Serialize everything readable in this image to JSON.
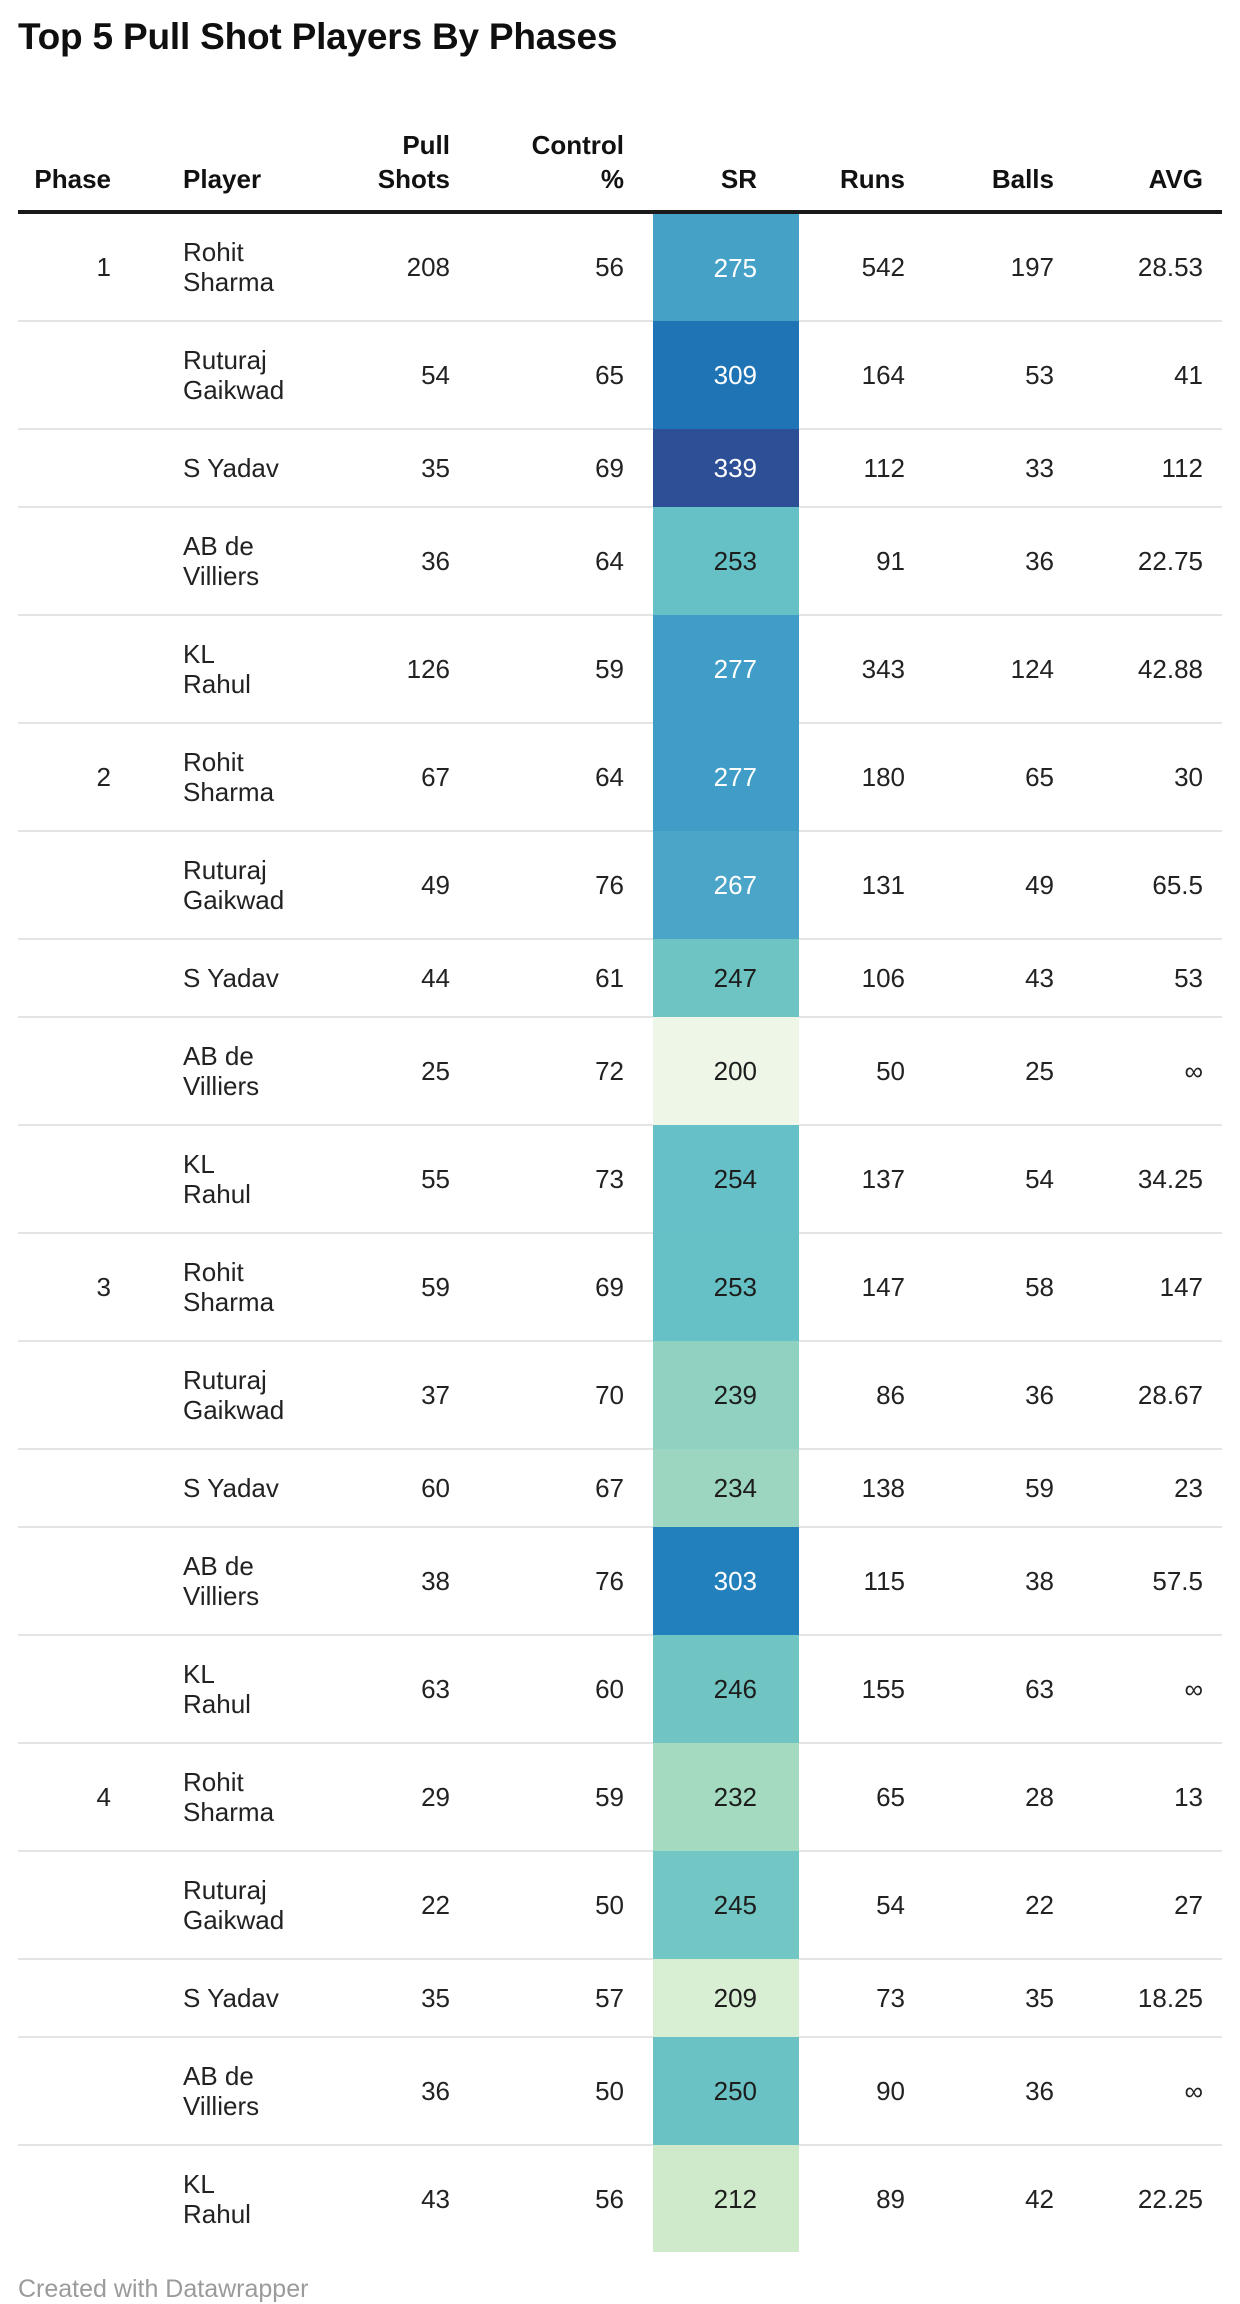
{
  "title": "Top 5 Pull Shot Players By Phases",
  "footer": {
    "credit": "Created with Datawrapper"
  },
  "colors": {
    "header_rule": "#1a1a1a",
    "row_rule": "#e4e4e4",
    "title_text": "#0f0f0f",
    "body_text": "#222222",
    "footer_text": "#9b9b9b",
    "sr_text_light": "#ffffff",
    "sr_text_dark": "#1d1d1d"
  },
  "table": {
    "columns": [
      {
        "key": "phase",
        "label": "Phase"
      },
      {
        "key": "player",
        "label": "Player"
      },
      {
        "key": "pull_shots",
        "label": "Pull\nShots"
      },
      {
        "key": "control_pct",
        "label": "Control\n%"
      },
      {
        "key": "sr",
        "label": "SR"
      },
      {
        "key": "runs",
        "label": "Runs"
      },
      {
        "key": "balls",
        "label": "Balls"
      },
      {
        "key": "avg",
        "label": "AVG"
      }
    ],
    "rows": [
      {
        "phase": "1",
        "player": "Rohit\nSharma",
        "pull_shots": "208",
        "control_pct": "56",
        "sr": "275",
        "runs": "542",
        "balls": "197",
        "avg": "28.53",
        "sr_color": "#46a1c7",
        "sr_text": "light"
      },
      {
        "phase": "",
        "player": "Ruturaj\nGaikwad",
        "pull_shots": "54",
        "control_pct": "65",
        "sr": "309",
        "runs": "164",
        "balls": "53",
        "avg": "41",
        "sr_color": "#1e74b5",
        "sr_text": "light"
      },
      {
        "phase": "",
        "player": "S Yadav",
        "pull_shots": "35",
        "control_pct": "69",
        "sr": "339",
        "runs": "112",
        "balls": "33",
        "avg": "112",
        "sr_color": "#2d4f96",
        "sr_text": "light"
      },
      {
        "phase": "",
        "player": "AB de\nVilliers",
        "pull_shots": "36",
        "control_pct": "64",
        "sr": "253",
        "runs": "91",
        "balls": "36",
        "avg": "22.75",
        "sr_color": "#66c1c6",
        "sr_text": "dark"
      },
      {
        "phase": "",
        "player": "KL\nRahul",
        "pull_shots": "126",
        "control_pct": "59",
        "sr": "277",
        "runs": "343",
        "balls": "124",
        "avg": "42.88",
        "sr_color": "#3f9dc7",
        "sr_text": "light"
      },
      {
        "phase": "2",
        "player": "Rohit\nSharma",
        "pull_shots": "67",
        "control_pct": "64",
        "sr": "277",
        "runs": "180",
        "balls": "65",
        "avg": "30",
        "sr_color": "#3f9dc7",
        "sr_text": "light"
      },
      {
        "phase": "",
        "player": "Ruturaj\nGaikwad",
        "pull_shots": "49",
        "control_pct": "76",
        "sr": "267",
        "runs": "131",
        "balls": "49",
        "avg": "65.5",
        "sr_color": "#4aa5c8",
        "sr_text": "light"
      },
      {
        "phase": "",
        "player": "S Yadav",
        "pull_shots": "44",
        "control_pct": "61",
        "sr": "247",
        "runs": "106",
        "balls": "43",
        "avg": "53",
        "sr_color": "#6ec4c3",
        "sr_text": "dark"
      },
      {
        "phase": "",
        "player": "AB de\nVilliers",
        "pull_shots": "25",
        "control_pct": "72",
        "sr": "200",
        "runs": "50",
        "balls": "25",
        "avg": "∞",
        "sr_color": "#eef6e8",
        "sr_text": "dark"
      },
      {
        "phase": "",
        "player": "KL\nRahul",
        "pull_shots": "55",
        "control_pct": "73",
        "sr": "254",
        "runs": "137",
        "balls": "54",
        "avg": "34.25",
        "sr_color": "#65c0c7",
        "sr_text": "dark"
      },
      {
        "phase": "3",
        "player": "Rohit\nSharma",
        "pull_shots": "59",
        "control_pct": "69",
        "sr": "253",
        "runs": "147",
        "balls": "58",
        "avg": "147",
        "sr_color": "#66c1c6",
        "sr_text": "dark"
      },
      {
        "phase": "",
        "player": "Ruturaj\nGaikwad",
        "pull_shots": "37",
        "control_pct": "70",
        "sr": "239",
        "runs": "86",
        "balls": "36",
        "avg": "28.67",
        "sr_color": "#8fd2c1",
        "sr_text": "dark"
      },
      {
        "phase": "",
        "player": "S Yadav",
        "pull_shots": "60",
        "control_pct": "67",
        "sr": "234",
        "runs": "138",
        "balls": "59",
        "avg": "23",
        "sr_color": "#9cd6c1",
        "sr_text": "dark"
      },
      {
        "phase": "",
        "player": "AB de\nVilliers",
        "pull_shots": "38",
        "control_pct": "76",
        "sr": "303",
        "runs": "115",
        "balls": "38",
        "avg": "57.5",
        "sr_color": "#2280bc",
        "sr_text": "light"
      },
      {
        "phase": "",
        "player": "KL\nRahul",
        "pull_shots": "63",
        "control_pct": "60",
        "sr": "246",
        "runs": "155",
        "balls": "63",
        "avg": "∞",
        "sr_color": "#70c5c3",
        "sr_text": "dark"
      },
      {
        "phase": "4",
        "player": "Rohit\nSharma",
        "pull_shots": "29",
        "control_pct": "59",
        "sr": "232",
        "runs": "65",
        "balls": "28",
        "avg": "13",
        "sr_color": "#a3dac0",
        "sr_text": "dark"
      },
      {
        "phase": "",
        "player": "Ruturaj\nGaikwad",
        "pull_shots": "22",
        "control_pct": "50",
        "sr": "245",
        "runs": "54",
        "balls": "22",
        "avg": "27",
        "sr_color": "#72c6c3",
        "sr_text": "dark"
      },
      {
        "phase": "",
        "player": "S Yadav",
        "pull_shots": "35",
        "control_pct": "57",
        "sr": "209",
        "runs": "73",
        "balls": "35",
        "avg": "18.25",
        "sr_color": "#d9efd3",
        "sr_text": "dark"
      },
      {
        "phase": "",
        "player": "AB de\nVilliers",
        "pull_shots": "36",
        "control_pct": "50",
        "sr": "250",
        "runs": "90",
        "balls": "36",
        "avg": "∞",
        "sr_color": "#6ac2c4",
        "sr_text": "dark"
      },
      {
        "phase": "",
        "player": "KL\nRahul",
        "pull_shots": "43",
        "control_pct": "56",
        "sr": "212",
        "runs": "89",
        "balls": "42",
        "avg": "22.25",
        "sr_color": "#cfeacb",
        "sr_text": "dark"
      }
    ]
  },
  "chart_data": {
    "type": "table",
    "title": "Top 5 Pull Shot Players By Phases",
    "columns": [
      "Phase",
      "Player",
      "Pull Shots",
      "Control %",
      "SR",
      "Runs",
      "Balls",
      "AVG"
    ],
    "rows": [
      [
        1,
        "Rohit Sharma",
        208,
        56,
        275,
        542,
        197,
        28.53
      ],
      [
        1,
        "Ruturaj Gaikwad",
        54,
        65,
        309,
        164,
        53,
        41
      ],
      [
        1,
        "S Yadav",
        35,
        69,
        339,
        112,
        33,
        112
      ],
      [
        1,
        "AB de Villiers",
        36,
        64,
        253,
        91,
        36,
        22.75
      ],
      [
        1,
        "KL Rahul",
        126,
        59,
        277,
        343,
        124,
        42.88
      ],
      [
        2,
        "Rohit Sharma",
        67,
        64,
        277,
        180,
        65,
        30
      ],
      [
        2,
        "Ruturaj Gaikwad",
        49,
        76,
        267,
        131,
        49,
        65.5
      ],
      [
        2,
        "S Yadav",
        44,
        61,
        247,
        106,
        43,
        53
      ],
      [
        2,
        "AB de Villiers",
        25,
        72,
        200,
        50,
        25,
        "∞"
      ],
      [
        2,
        "KL Rahul",
        55,
        73,
        254,
        137,
        54,
        34.25
      ],
      [
        3,
        "Rohit Sharma",
        59,
        69,
        253,
        147,
        58,
        147
      ],
      [
        3,
        "Ruturaj Gaikwad",
        37,
        70,
        239,
        86,
        36,
        28.67
      ],
      [
        3,
        "S Yadav",
        60,
        67,
        234,
        138,
        59,
        23
      ],
      [
        3,
        "AB de Villiers",
        38,
        76,
        303,
        115,
        38,
        57.5
      ],
      [
        3,
        "KL Rahul",
        63,
        60,
        246,
        155,
        63,
        "∞"
      ],
      [
        4,
        "Rohit Sharma",
        29,
        59,
        232,
        65,
        28,
        13
      ],
      [
        4,
        "Ruturaj Gaikwad",
        22,
        50,
        245,
        54,
        22,
        27
      ],
      [
        4,
        "S Yadav",
        35,
        57,
        209,
        73,
        35,
        18.25
      ],
      [
        4,
        "AB de Villiers",
        36,
        50,
        250,
        90,
        36,
        "∞"
      ],
      [
        4,
        "KL Rahul",
        43,
        56,
        212,
        89,
        42,
        22.25
      ]
    ],
    "heatmap": {
      "column": "SR",
      "min": 200,
      "max": 339,
      "palette": "light-green to teal to dark-blue (GnBu-like)",
      "light_text_threshold": 260
    },
    "legend_position": "none",
    "grid": "horizontal row rules"
  }
}
